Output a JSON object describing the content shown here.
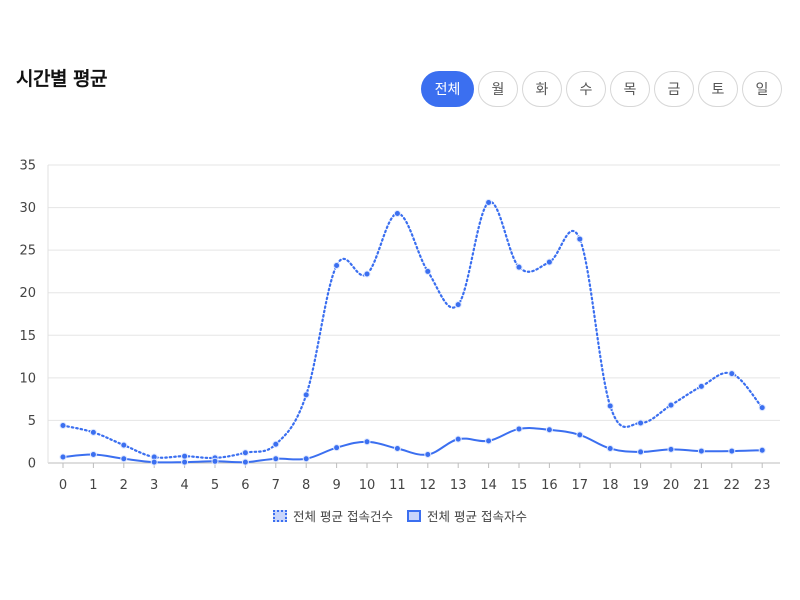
{
  "header": {
    "title": "시간별 평균"
  },
  "tabs": [
    {
      "label": "전체",
      "active": true
    },
    {
      "label": "월",
      "active": false
    },
    {
      "label": "화",
      "active": false
    },
    {
      "label": "수",
      "active": false
    },
    {
      "label": "목",
      "active": false
    },
    {
      "label": "금",
      "active": false
    },
    {
      "label": "토",
      "active": false
    },
    {
      "label": "일",
      "active": false
    }
  ],
  "colors": {
    "accent": "#3b6ff0",
    "grid": "#e5e5e5"
  },
  "chart_data": {
    "type": "line",
    "x": [
      "0",
      "1",
      "2",
      "3",
      "4",
      "5",
      "6",
      "7",
      "8",
      "9",
      "10",
      "11",
      "12",
      "13",
      "14",
      "15",
      "16",
      "17",
      "18",
      "19",
      "20",
      "21",
      "22",
      "23"
    ],
    "ylim": [
      0,
      35
    ],
    "yticks": [
      0,
      5,
      10,
      15,
      20,
      25,
      30,
      35
    ],
    "grid": true,
    "legend_position": "bottom",
    "series": [
      {
        "name": "전체 평균 접속건수",
        "style": "dotted",
        "values": [
          4.4,
          3.6,
          2.1,
          0.7,
          0.8,
          0.6,
          1.2,
          2.2,
          8.0,
          23.2,
          22.2,
          29.3,
          22.5,
          18.6,
          30.6,
          23.0,
          23.6,
          26.3,
          6.7,
          4.7,
          6.8,
          9.0,
          10.5,
          6.5
        ]
      },
      {
        "name": "전체 평균 접속자수",
        "style": "solid",
        "values": [
          0.7,
          1.0,
          0.5,
          0.1,
          0.1,
          0.2,
          0.1,
          0.5,
          0.5,
          1.8,
          2.5,
          1.7,
          1.0,
          2.8,
          2.6,
          4.0,
          3.9,
          3.3,
          1.7,
          1.3,
          1.6,
          1.4,
          1.4,
          1.5
        ]
      }
    ]
  }
}
